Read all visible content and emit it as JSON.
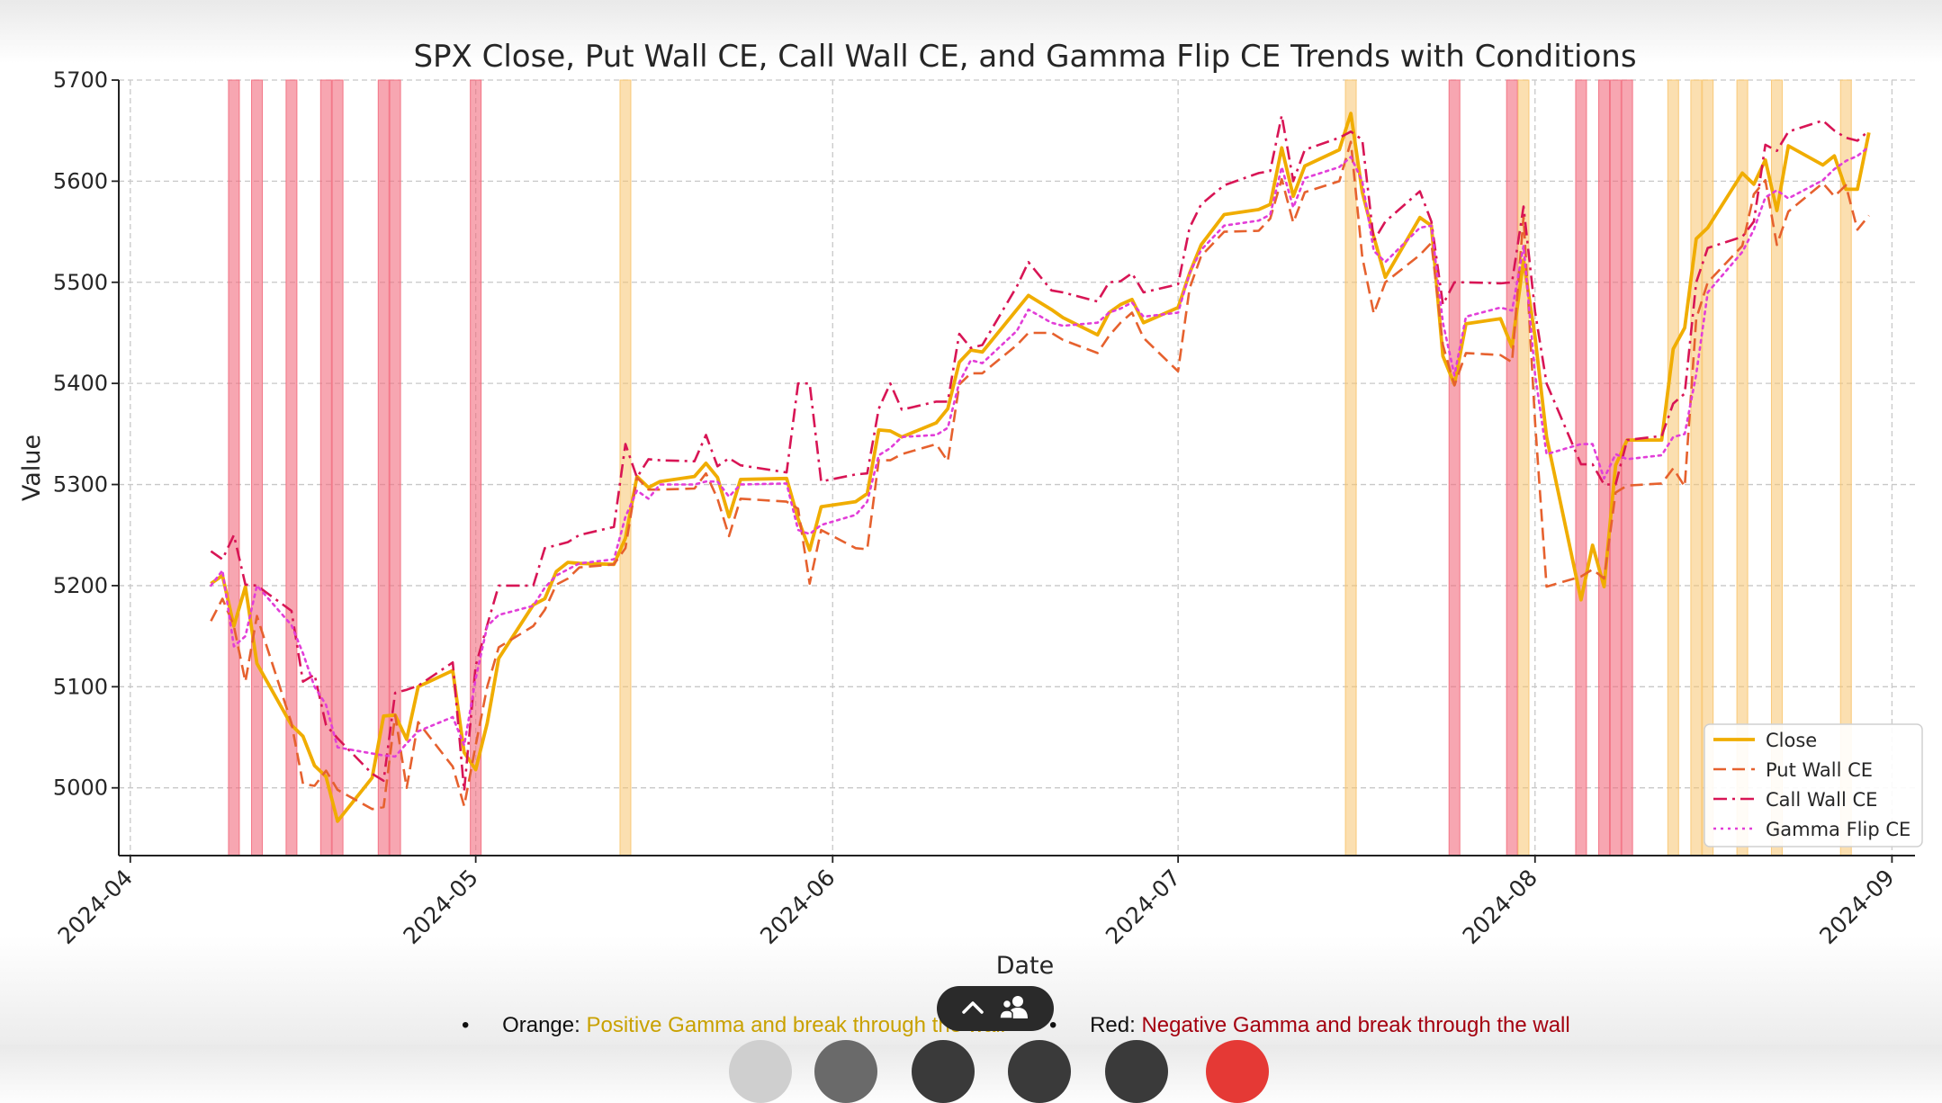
{
  "chart_data": {
    "type": "line",
    "title": "SPX Close, Put Wall CE, Call Wall CE, and Gamma Flip CE Trends with Conditions",
    "xlabel": "Date",
    "ylabel": "Value",
    "xlim": [
      "2024-03-31",
      "2024-09-03"
    ],
    "ylim": [
      4933,
      5700
    ],
    "yticks": [
      5000,
      5100,
      5200,
      5300,
      5400,
      5500,
      5600,
      5700
    ],
    "xticks": [
      "2024-04",
      "2024-05",
      "2024-06",
      "2024-07",
      "2024-08",
      "2024-09"
    ],
    "grid": true,
    "legend_position": "lower right",
    "dates": [
      "2024-04-08",
      "2024-04-09",
      "2024-04-10",
      "2024-04-11",
      "2024-04-12",
      "2024-04-15",
      "2024-04-16",
      "2024-04-17",
      "2024-04-18",
      "2024-04-19",
      "2024-04-22",
      "2024-04-23",
      "2024-04-24",
      "2024-04-25",
      "2024-04-26",
      "2024-04-29",
      "2024-04-30",
      "2024-05-01",
      "2024-05-02",
      "2024-05-03",
      "2024-05-06",
      "2024-05-07",
      "2024-05-08",
      "2024-05-09",
      "2024-05-10",
      "2024-05-13",
      "2024-05-14",
      "2024-05-15",
      "2024-05-16",
      "2024-05-17",
      "2024-05-20",
      "2024-05-21",
      "2024-05-22",
      "2024-05-23",
      "2024-05-24",
      "2024-05-28",
      "2024-05-29",
      "2024-05-30",
      "2024-05-31",
      "2024-06-03",
      "2024-06-04",
      "2024-06-05",
      "2024-06-06",
      "2024-06-07",
      "2024-06-10",
      "2024-06-11",
      "2024-06-12",
      "2024-06-13",
      "2024-06-14",
      "2024-06-17",
      "2024-06-18",
      "2024-06-20",
      "2024-06-21",
      "2024-06-24",
      "2024-06-25",
      "2024-06-26",
      "2024-06-27",
      "2024-06-28",
      "2024-07-01",
      "2024-07-02",
      "2024-07-03",
      "2024-07-05",
      "2024-07-08",
      "2024-07-09",
      "2024-07-10",
      "2024-07-11",
      "2024-07-12",
      "2024-07-15",
      "2024-07-16",
      "2024-07-17",
      "2024-07-18",
      "2024-07-19",
      "2024-07-22",
      "2024-07-23",
      "2024-07-24",
      "2024-07-25",
      "2024-07-26",
      "2024-07-29",
      "2024-07-30",
      "2024-07-31",
      "2024-08-01",
      "2024-08-02",
      "2024-08-05",
      "2024-08-06",
      "2024-08-07",
      "2024-08-08",
      "2024-08-09",
      "2024-08-12",
      "2024-08-13",
      "2024-08-14",
      "2024-08-15",
      "2024-08-16",
      "2024-08-19",
      "2024-08-20",
      "2024-08-21",
      "2024-08-22",
      "2024-08-23",
      "2024-08-26",
      "2024-08-27",
      "2024-08-28",
      "2024-08-29",
      "2024-08-30"
    ],
    "series": [
      {
        "name": "Close",
        "color": "#f0ad00",
        "style": "solid",
        "values": [
          5202,
          5210,
          5160,
          5199,
          5123,
          5062,
          5051,
          5022,
          5011,
          4967,
          5010,
          5071,
          5072,
          5048,
          5100,
          5116,
          5035,
          5018,
          5064,
          5128,
          5181,
          5187,
          5214,
          5223,
          5222,
          5221,
          5247,
          5308,
          5297,
          5303,
          5308,
          5321,
          5307,
          5268,
          5305,
          5306,
          5266,
          5235,
          5278,
          5283,
          5291,
          5354,
          5353,
          5347,
          5361,
          5375,
          5421,
          5433,
          5431,
          5473,
          5487,
          5473,
          5465,
          5448,
          5470,
          5478,
          5483,
          5460,
          5475,
          5509,
          5537,
          5567,
          5572,
          5577,
          5633,
          5585,
          5615,
          5631,
          5667,
          5589,
          5545,
          5505,
          5564,
          5556,
          5427,
          5399,
          5459,
          5464,
          5436,
          5522,
          5446,
          5347,
          5186,
          5240,
          5199,
          5319,
          5344,
          5344,
          5434,
          5455,
          5543,
          5554,
          5608,
          5597,
          5621,
          5571,
          5635,
          5616,
          5625,
          5592,
          5592,
          5648
        ]
      },
      {
        "name": "Put Wall CE",
        "color": "#e6612e",
        "style": "dashed",
        "values": [
          5165,
          5187,
          5160,
          5105,
          5170,
          5064,
          5004,
          5002,
          5017,
          4998,
          4979,
          4981,
          5072,
          5000,
          5065,
          5021,
          4982,
          5042,
          5100,
          5139,
          5160,
          5176,
          5201,
          5207,
          5218,
          5221,
          5237,
          5307,
          5295,
          5295,
          5296,
          5311,
          5286,
          5249,
          5286,
          5283,
          5276,
          5202,
          5255,
          5237,
          5236,
          5324,
          5324,
          5330,
          5340,
          5323,
          5399,
          5410,
          5410,
          5438,
          5450,
          5450,
          5443,
          5430,
          5447,
          5460,
          5470,
          5445,
          5412,
          5494,
          5526,
          5550,
          5551,
          5563,
          5602,
          5559,
          5589,
          5600,
          5639,
          5525,
          5469,
          5500,
          5527,
          5539,
          5438,
          5398,
          5430,
          5428,
          5421,
          5565,
          5362,
          5199,
          5209,
          5216,
          5207,
          5292,
          5299,
          5301,
          5316,
          5298,
          5464,
          5500,
          5536,
          5587,
          5601,
          5537,
          5570,
          5598,
          5585,
          5596,
          5552,
          5566
        ]
      },
      {
        "name": "Call Wall CE",
        "color": "#d81555",
        "style": "dashdot",
        "values": [
          5234,
          5226,
          5250,
          5201,
          5200,
          5175,
          5105,
          5112,
          5062,
          5049,
          5014,
          5007,
          5094,
          5097,
          5101,
          5124,
          4997,
          5121,
          5161,
          5200,
          5200,
          5237,
          5240,
          5243,
          5250,
          5258,
          5340,
          5307,
          5325,
          5324,
          5323,
          5349,
          5318,
          5326,
          5319,
          5312,
          5400,
          5400,
          5303,
          5310,
          5311,
          5375,
          5400,
          5374,
          5382,
          5382,
          5449,
          5435,
          5438,
          5496,
          5520,
          5492,
          5490,
          5481,
          5500,
          5501,
          5509,
          5490,
          5498,
          5554,
          5577,
          5596,
          5608,
          5610,
          5665,
          5600,
          5631,
          5643,
          5649,
          5641,
          5541,
          5560,
          5590,
          5560,
          5478,
          5500,
          5500,
          5499,
          5500,
          5575,
          5471,
          5400,
          5320,
          5320,
          5300,
          5300,
          5344,
          5348,
          5380,
          5390,
          5500,
          5534,
          5545,
          5560,
          5636,
          5630,
          5649,
          5660,
          5650,
          5643,
          5640,
          5650
        ]
      },
      {
        "name": "Gamma Flip CE",
        "color": "#e23ed8",
        "style": "dotted",
        "values": [
          5200,
          5215,
          5140,
          5150,
          5200,
          5161,
          5133,
          5100,
          5082,
          5040,
          5034,
          5032,
          5031,
          5044,
          5056,
          5070,
          5042,
          5108,
          5160,
          5171,
          5180,
          5198,
          5210,
          5216,
          5222,
          5226,
          5268,
          5294,
          5286,
          5300,
          5300,
          5303,
          5303,
          5288,
          5300,
          5301,
          5255,
          5251,
          5260,
          5270,
          5283,
          5329,
          5336,
          5347,
          5349,
          5356,
          5401,
          5423,
          5420,
          5452,
          5473,
          5460,
          5457,
          5460,
          5470,
          5474,
          5480,
          5466,
          5470,
          5509,
          5532,
          5556,
          5561,
          5567,
          5614,
          5574,
          5603,
          5614,
          5624,
          5600,
          5531,
          5520,
          5554,
          5556,
          5460,
          5408,
          5466,
          5475,
          5472,
          5536,
          5409,
          5330,
          5340,
          5340,
          5306,
          5330,
          5325,
          5329,
          5347,
          5350,
          5409,
          5490,
          5530,
          5552,
          5584,
          5591,
          5583,
          5601,
          5612,
          5620,
          5625,
          5634
        ]
      }
    ],
    "condition_bands": [
      {
        "date": "2024-04-10",
        "condition": "red"
      },
      {
        "date": "2024-04-12",
        "condition": "red"
      },
      {
        "date": "2024-04-15",
        "condition": "red"
      },
      {
        "date": "2024-04-18",
        "condition": "red"
      },
      {
        "date": "2024-04-19",
        "condition": "red"
      },
      {
        "date": "2024-04-23",
        "condition": "red"
      },
      {
        "date": "2024-04-24",
        "condition": "red"
      },
      {
        "date": "2024-05-01",
        "condition": "red"
      },
      {
        "date": "2024-05-14",
        "condition": "orange"
      },
      {
        "date": "2024-07-16",
        "condition": "orange"
      },
      {
        "date": "2024-07-25",
        "condition": "red"
      },
      {
        "date": "2024-07-30",
        "condition": "red"
      },
      {
        "date": "2024-07-31",
        "condition": "orange"
      },
      {
        "date": "2024-08-05",
        "condition": "red"
      },
      {
        "date": "2024-08-07",
        "condition": "red"
      },
      {
        "date": "2024-08-08",
        "condition": "red"
      },
      {
        "date": "2024-08-09",
        "condition": "red"
      },
      {
        "date": "2024-08-13",
        "condition": "orange"
      },
      {
        "date": "2024-08-15",
        "condition": "orange"
      },
      {
        "date": "2024-08-16",
        "condition": "orange"
      },
      {
        "date": "2024-08-19",
        "condition": "orange"
      },
      {
        "date": "2024-08-22",
        "condition": "orange"
      },
      {
        "date": "2024-08-28",
        "condition": "orange"
      }
    ],
    "band_colors": {
      "red": "#f26b7d",
      "orange": "#f8c56f"
    }
  },
  "footer": {
    "bullet": "•",
    "orange_label": "Orange:",
    "orange_text": "Positive Gamma and break through the wall",
    "red_label": "Red:",
    "red_text": "Negative Gamma and break through the wall"
  }
}
